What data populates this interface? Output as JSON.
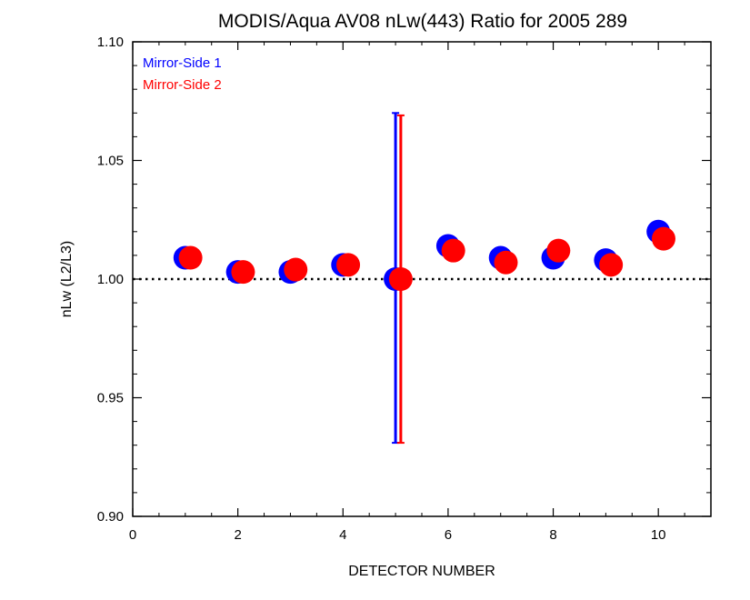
{
  "chart_data": {
    "type": "scatter",
    "title": "MODIS/Aqua AV08 nLw(443) Ratio for 2005 289",
    "xlabel": "DETECTOR NUMBER",
    "ylabel": "nLw (L2/L3)",
    "xlim": [
      0,
      11
    ],
    "ylim": [
      0.9,
      1.1
    ],
    "x_ticks": [
      0,
      2,
      4,
      6,
      8,
      10
    ],
    "x_tick_labels": [
      "0",
      "2",
      "4",
      "6",
      "8",
      "10"
    ],
    "y_ticks": [
      0.9,
      0.95,
      1.0,
      1.05,
      1.1
    ],
    "y_tick_labels": [
      "0.90",
      "0.95",
      "1.00",
      "1.05",
      "1.10"
    ],
    "reference_line": {
      "y": 1.0,
      "style": "dotted"
    },
    "legend_position": "top-left",
    "series": [
      {
        "name": "Mirror-Side 1",
        "color": "#0000ff",
        "x": [
          1,
          2,
          3,
          4,
          5,
          6,
          7,
          8,
          9,
          10
        ],
        "y": [
          1.009,
          1.003,
          1.003,
          1.006,
          1.0,
          1.014,
          1.009,
          1.009,
          1.008,
          1.02
        ],
        "error_bars": [
          {
            "x": 5,
            "low": 0.931,
            "high": 1.07
          }
        ]
      },
      {
        "name": "Mirror-Side 2",
        "color": "#ff0000",
        "x": [
          1.1,
          2.1,
          3.1,
          4.1,
          5.1,
          6.1,
          7.1,
          8.1,
          9.1,
          10.1
        ],
        "y": [
          1.009,
          1.003,
          1.004,
          1.006,
          1.0,
          1.012,
          1.007,
          1.012,
          1.006,
          1.017
        ],
        "error_bars": [
          {
            "x": 5.1,
            "low": 0.931,
            "high": 1.069
          }
        ]
      }
    ]
  }
}
